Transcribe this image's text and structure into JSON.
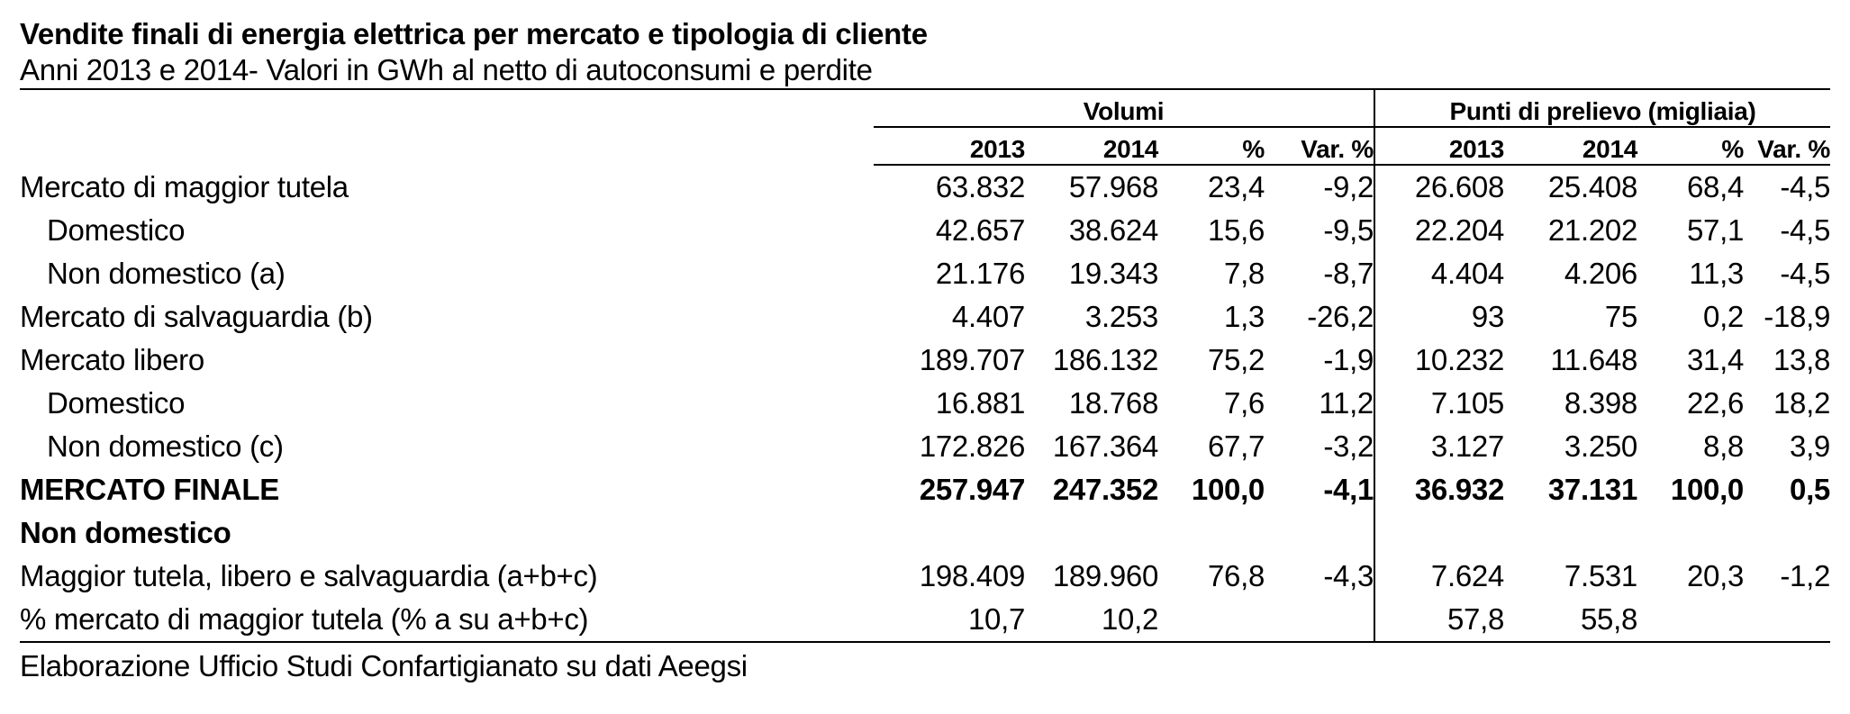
{
  "title": "Vendite finali di energia elettrica per mercato e tipologia di cliente",
  "subtitle": "Anni 2013 e 2014- Valori in GWh al netto di autoconsumi e perdite",
  "groups": {
    "volumi": "Volumi",
    "punti": "Punti di prelievo (migliaia)"
  },
  "columns": [
    "2013",
    "2014",
    "%",
    "Var. %",
    "2013",
    "2014",
    "%",
    "Var. %"
  ],
  "rows": [
    {
      "label": "Mercato di maggior tutela",
      "values": [
        "63.832",
        "57.968",
        "23,4",
        "-9,2",
        "26.608",
        "25.408",
        "68,4",
        "-4,5"
      ]
    },
    {
      "label": "Domestico",
      "values": [
        "42.657",
        "38.624",
        "15,6",
        "-9,5",
        "22.204",
        "21.202",
        "57,1",
        "-4,5"
      ]
    },
    {
      "label": "Non domestico (a)",
      "values": [
        "21.176",
        "19.343",
        "7,8",
        "-8,7",
        "4.404",
        "4.206",
        "11,3",
        "-4,5"
      ]
    },
    {
      "label": "Mercato di salvaguardia (b)",
      "values": [
        "4.407",
        "3.253",
        "1,3",
        "-26,2",
        "93",
        "75",
        "0,2",
        "-18,9"
      ]
    },
    {
      "label": "Mercato libero",
      "values": [
        "189.707",
        "186.132",
        "75,2",
        "-1,9",
        "10.232",
        "11.648",
        "31,4",
        "13,8"
      ]
    },
    {
      "label": "Domestico",
      "values": [
        "16.881",
        "18.768",
        "7,6",
        "11,2",
        "7.105",
        "8.398",
        "22,6",
        "18,2"
      ]
    },
    {
      "label": "Non domestico (c)",
      "values": [
        "172.826",
        "167.364",
        "67,7",
        "-3,2",
        "3.127",
        "3.250",
        "8,8",
        "3,9"
      ]
    },
    {
      "label": "MERCATO FINALE",
      "values": [
        "257.947",
        "247.352",
        "100,0",
        "-4,1",
        "36.932",
        "37.131",
        "100,0",
        "0,5"
      ]
    },
    {
      "label": "Non domestico",
      "values": [
        "",
        "",
        "",
        "",
        "",
        "",
        "",
        ""
      ]
    },
    {
      "label": "Maggior tutela, libero e salvaguardia (a+b+c)",
      "values": [
        "198.409",
        "189.960",
        "76,8",
        "-4,3",
        "7.624",
        "7.531",
        "20,3",
        "-1,2"
      ]
    },
    {
      "label": "% mercato di maggior tutela (% a su a+b+c)",
      "values": [
        "10,7",
        "10,2",
        "",
        "",
        "57,8",
        "55,8",
        "",
        ""
      ]
    }
  ],
  "source": "Elaborazione Ufficio Studi Confartigianato su dati Aeegsi"
}
